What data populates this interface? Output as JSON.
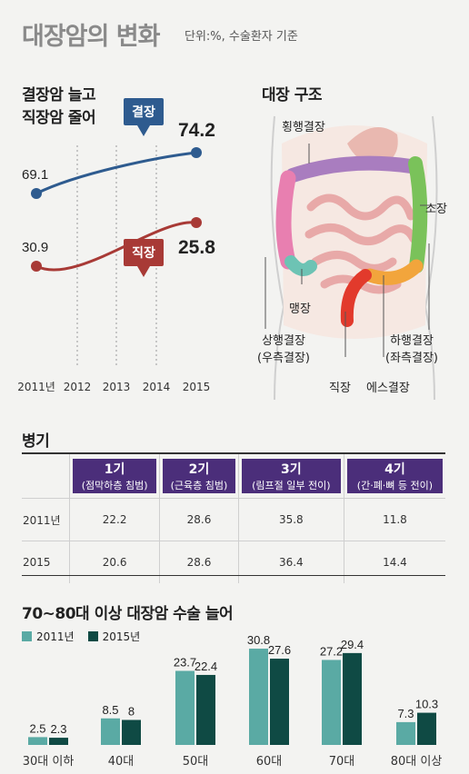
{
  "header": {
    "title": "대장암의 변화",
    "unit": "단위:%, 수술환자 기준"
  },
  "colors": {
    "colon": "#2e5b8f",
    "rectum": "#a83a36",
    "purple": "#4b2e7a",
    "teal_2011": "#5aaaa4",
    "green_2015": "#0f4a44"
  },
  "line_section": {
    "title_line1": "결장암 늘고",
    "title_line2": "직장암 줄어"
  },
  "anatomy": {
    "title": "대장 구조",
    "labels": {
      "transverse": "횡행결장",
      "small": "소장",
      "cecum": "맹장",
      "ascending": "상행결장",
      "ascending_sub": "(우측결장)",
      "descending": "하행결장",
      "descending_sub": "(좌측결장)",
      "rectum": "직장",
      "sigmoid": "에스결장"
    }
  },
  "stage_section": {
    "title": "병기",
    "headers": [
      {
        "n": "1기",
        "d": "(점막하층 침범)"
      },
      {
        "n": "2기",
        "d": "(근육층 침범)"
      },
      {
        "n": "3기",
        "d": "(림프절 일부 전이)"
      },
      {
        "n": "4기",
        "d": "(간·폐·뼈 등 전이)"
      }
    ],
    "rows": [
      {
        "year": "2011년",
        "values": [
          "22.2",
          "28.6",
          "35.8",
          "11.8"
        ]
      },
      {
        "year": "2015",
        "values": [
          "20.6",
          "28.6",
          "36.4",
          "14.4"
        ]
      }
    ]
  },
  "bar_section": {
    "title": "70~80대 이상 대장암 수술 늘어"
  },
  "chart_data": [
    {
      "type": "line",
      "x": [
        "2011년",
        "2012",
        "2013",
        "2014",
        "2015"
      ],
      "series": [
        {
          "name": "결장",
          "values": [
            69.1,
            null,
            null,
            null,
            74.2
          ],
          "labels": [
            "69.1",
            "74.2"
          ]
        },
        {
          "name": "직장",
          "values": [
            30.9,
            null,
            null,
            null,
            25.8
          ],
          "labels": [
            "30.9",
            "25.8"
          ]
        }
      ]
    },
    {
      "type": "bar",
      "categories": [
        "30대 이하",
        "40대",
        "50대",
        "60대",
        "70대",
        "80대 이상"
      ],
      "series": [
        {
          "name": "2011년",
          "values": [
            2.5,
            8.5,
            23.7,
            30.8,
            27.2,
            7.3
          ],
          "labels": [
            "2.5",
            "8.5",
            "23.7",
            "30.8",
            "27.2",
            "7.3"
          ]
        },
        {
          "name": "2015년",
          "values": [
            2.3,
            8,
            22.4,
            27.6,
            29.4,
            10.3
          ],
          "labels": [
            "2.3",
            "8",
            "22.4",
            "27.6",
            "29.4",
            "10.3"
          ]
        }
      ]
    }
  ]
}
